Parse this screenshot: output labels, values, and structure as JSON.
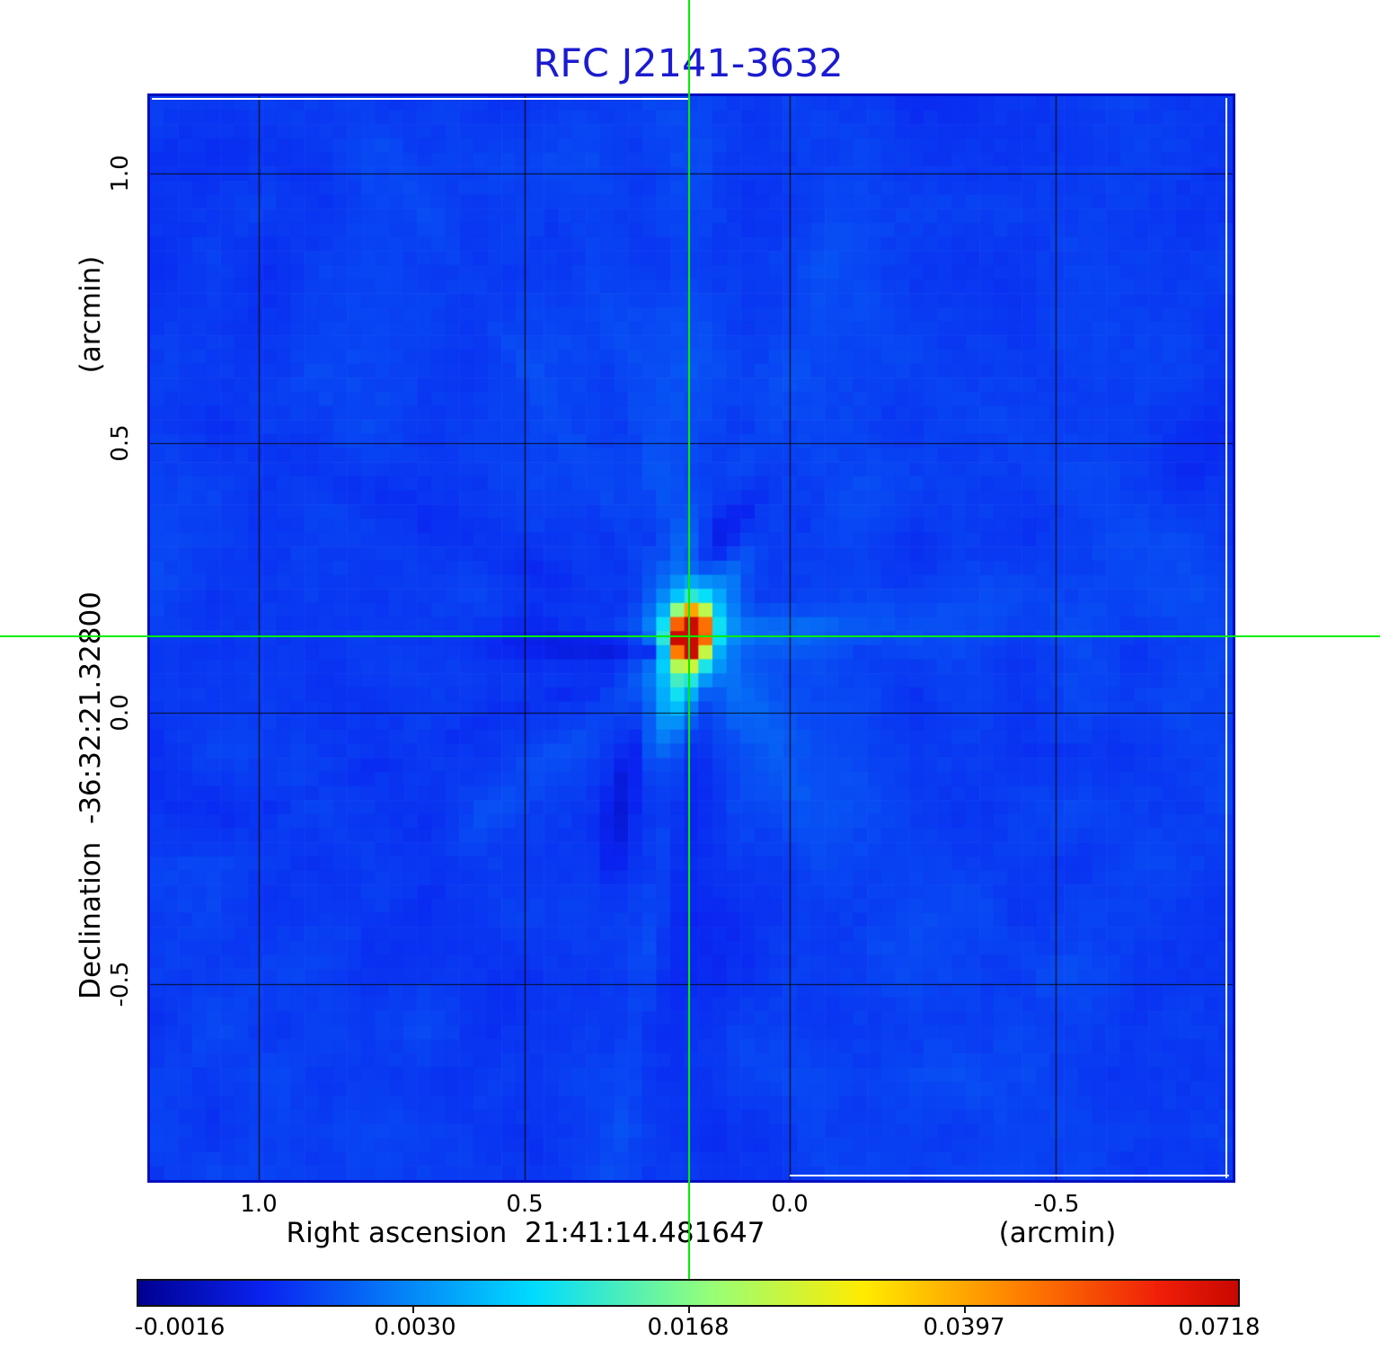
{
  "page": {
    "background": "#ffffff"
  },
  "chart_data": {
    "type": "heatmap",
    "title": "RFC J2141-3632",
    "title_color": "#1b1bd0",
    "x_axis": {
      "title": "Right ascension  21:41:14.481647",
      "unit": "(arcmin)",
      "ticks": [
        "1.0",
        "0.5",
        "0.0",
        "-0.5"
      ],
      "tick_values": [
        1.0,
        0.5,
        0.0,
        -0.5
      ],
      "range": [
        1.2,
        -0.83
      ],
      "grid": true
    },
    "y_axis": {
      "title": "Declination  -36:32:21.32800",
      "unit": "(arcmin)",
      "ticks": [
        "1.0",
        "0.5",
        "0.0",
        "-0.5"
      ],
      "tick_values": [
        1.0,
        0.5,
        0.0,
        -0.5
      ],
      "range": [
        -0.87,
        1.14
      ],
      "grid": true
    },
    "colorbar": {
      "labels": [
        "-0.0016",
        "0.0030",
        "0.0168",
        "0.0397",
        "0.0718"
      ],
      "values": [
        -0.0016,
        0.003,
        0.0168,
        0.0397,
        0.0718
      ],
      "label_positions": [
        0,
        0.25,
        0.5,
        0.75,
        1
      ],
      "colormap": "jet",
      "stretch": "v = -0.0016 + 0.0734 * t^2"
    },
    "crosshair": {
      "color": "#00ee00",
      "x_offset_arcmin": 0.19,
      "y_offset_arcmin": 0.14
    },
    "source": {
      "name": "RFC J2141-3632",
      "peak": 0.0718,
      "offset_ra_arcmin": 0.19,
      "offset_dec_arcmin": 0.14
    },
    "map_colors": {
      "background_blue": "#0e47f6",
      "sidelobe_dark": "#0726d8",
      "core_red": "#c80800"
    }
  }
}
